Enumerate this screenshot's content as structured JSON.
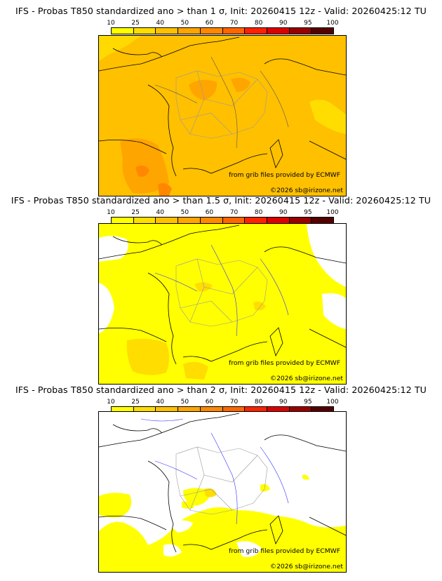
{
  "colors": {
    "scale": [
      "#ffff00",
      "#ffdd00",
      "#ffc000",
      "#ffa500",
      "#ff8800",
      "#ff6600",
      "#ff2200",
      "#dd0000",
      "#990000",
      "#550000"
    ],
    "background": "#ffffff",
    "coastline": "#000000",
    "rivers": "#3333ff",
    "borders": "#999999"
  },
  "colorbar": {
    "labels": [
      "10",
      "25",
      "40",
      "50",
      "60",
      "70",
      "80",
      "90",
      "95",
      "100"
    ]
  },
  "panels": [
    {
      "title": "IFS - Probas T850  standardized ano > than 1 σ, Init: 20260415 12z - Valid: 20260425:12 TU",
      "credit_source": "from grib files provided by ECMWF",
      "credit_copyright": "©2026 sb@irizone.net",
      "fill_description_level": "mostly 40-50 band",
      "base_band": 2
    },
    {
      "title": "IFS - Probas T850  standardized ano > than 1.5 σ, Init: 20260415 12z - Valid: 20260425:12 TU",
      "credit_source": "from grib files provided by ECMWF",
      "credit_copyright": "©2026 sb@irizone.net",
      "fill_description_level": "mostly 10-25 band",
      "base_band": 0
    },
    {
      "title": "IFS - Probas T850  standardized ano > than 2 σ, Init: 20260415 12z - Valid: 20260425:12 TU",
      "credit_source": "from grib files provided by ECMWF",
      "credit_copyright": "©2026 sb@irizone.net",
      "fill_description_level": "scattered 10-25 band in south",
      "base_band": 0
    }
  ]
}
